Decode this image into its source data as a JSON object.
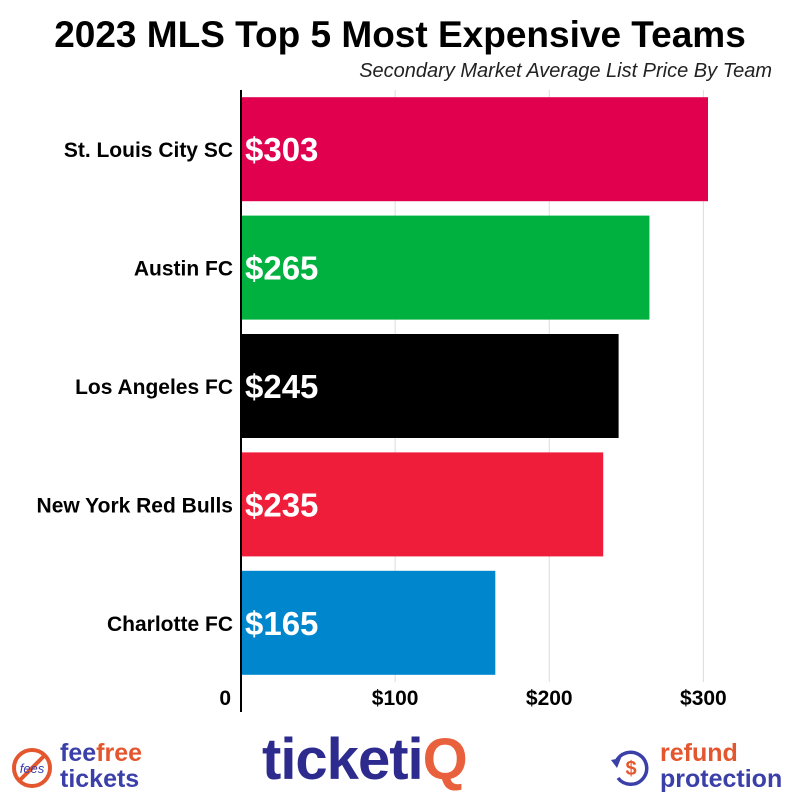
{
  "chart_data": {
    "type": "bar",
    "orientation": "horizontal",
    "title": "2023 MLS Top 5 Most Expensive Teams",
    "subtitle": "Secondary Market Average List Price By Team",
    "categories": [
      "St. Louis City SC",
      "Austin FC",
      "Los Angeles FC",
      "New York Red Bulls",
      "Charlotte FC"
    ],
    "values": [
      303,
      265,
      245,
      235,
      165
    ],
    "data_labels": [
      "$303",
      "$265",
      "$245",
      "$235",
      "$165"
    ],
    "bar_colors": [
      "#e0004d",
      "#00b140",
      "#000000",
      "#ef1c3a",
      "#0086cd"
    ],
    "xlim": [
      0,
      303
    ],
    "x_ticks": [
      0,
      100,
      200,
      300
    ],
    "x_tick_labels": [
      "0",
      "$100",
      "$200",
      "$300"
    ],
    "grid": "vertical"
  },
  "footer": {
    "fee_line1_a": "fee",
    "fee_line1_b": "free",
    "fee_line2": "tickets",
    "fee_badge_text": "fees",
    "brand_a": "ticketi",
    "brand_b": "Q",
    "refund_line1": "refund",
    "refund_line2": "protection",
    "refund_symbol": "$"
  }
}
